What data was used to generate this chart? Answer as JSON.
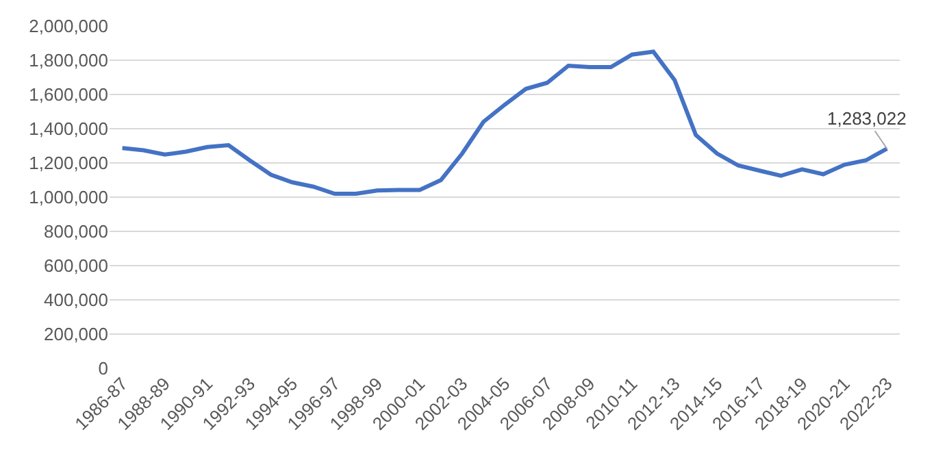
{
  "chart_data": {
    "type": "line",
    "categories": [
      "1986-87",
      null,
      "1988-89",
      null,
      "1990-91",
      null,
      "1992-93",
      null,
      "1994-95",
      null,
      "1996-97",
      null,
      "1998-99",
      null,
      "2000-01",
      null,
      "2002-03",
      null,
      "2004-05",
      null,
      "2006-07",
      null,
      "2008-09",
      null,
      "2010-11",
      null,
      "2012-13",
      null,
      "2014-15",
      null,
      "2016-17",
      null,
      "2018-19",
      null,
      "2020-21",
      null,
      "2022-23"
    ],
    "series": [
      {
        "color": "#4472c4",
        "values": [
          1287000,
          1274000,
          1249000,
          1266000,
          1293000,
          1304000,
          1215000,
          1131000,
          1087000,
          1061000,
          1020000,
          1020000,
          1039000,
          1042000,
          1042000,
          1100000,
          1255000,
          1440000,
          1540000,
          1633000,
          1668000,
          1768000,
          1760000,
          1760000,
          1833000,
          1850000,
          1684000,
          1363000,
          1255000,
          1185000,
          1155000,
          1125000,
          1163000,
          1134000,
          1190000,
          1215000,
          1283022
        ]
      }
    ],
    "annotations": [
      {
        "text": "1,283,022",
        "x": "2022-23",
        "y": 1283022
      }
    ],
    "ylim": [
      0,
      2000000
    ],
    "yticks": [
      {
        "value": 0,
        "label": "0"
      },
      {
        "value": 200000,
        "label": "200,000"
      },
      {
        "value": 400000,
        "label": "400,000"
      },
      {
        "value": 600000,
        "label": "600,000"
      },
      {
        "value": 800000,
        "label": "800,000"
      },
      {
        "value": 1000000,
        "label": "1,000,000"
      },
      {
        "value": 1200000,
        "label": "1,200,000"
      },
      {
        "value": 1400000,
        "label": "1,400,000"
      },
      {
        "value": 1600000,
        "label": "1,600,000"
      },
      {
        "value": 1800000,
        "label": "1,800,000"
      },
      {
        "value": 2000000,
        "label": "2,000,000"
      }
    ],
    "grid": "y",
    "marker": "none",
    "line_style": "solid"
  }
}
